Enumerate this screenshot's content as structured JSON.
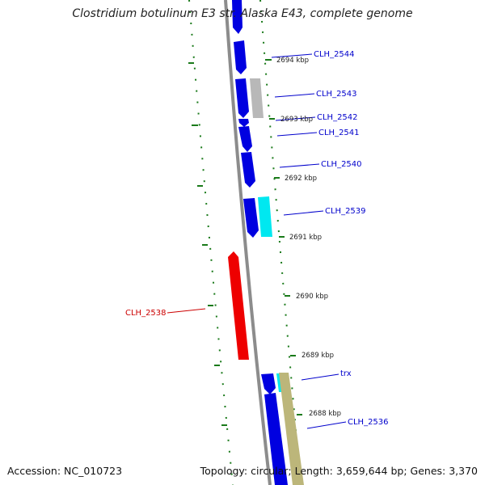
{
  "title": "Clostridium botulinum E3 str. Alaska E43, complete genome",
  "accession": "Accession: NC_010723",
  "summary": "Topology: circular; Length: 3,659,644 bp; Genes: 3,370",
  "colors": {
    "backbone": "#8c8c8c",
    "gc_skew_dots": "#1a7a1a",
    "gene_blue": "#0000e0",
    "gene_red": "#ee0000",
    "gene_gray": "#b8b8b8",
    "gene_cyan": "#00e8f0",
    "gene_khaki": "#bcb67a",
    "label_blue": "#0000cc",
    "label_red": "#cc0000"
  },
  "ticks": [
    "2694 kbp",
    "2693 kbp",
    "2692 kbp",
    "2691 kbp",
    "2690 kbp",
    "2689 kbp",
    "2688 kbp"
  ],
  "genes": [
    {
      "label": "CLH_2544",
      "color": "blue"
    },
    {
      "label": "CLH_2543",
      "color": "blue"
    },
    {
      "label": "CLH_2542",
      "color": "blue"
    },
    {
      "label": "CLH_2541",
      "color": "blue"
    },
    {
      "label": "CLH_2540",
      "color": "blue"
    },
    {
      "label": "CLH_2539",
      "color": "blue"
    },
    {
      "label": "CLH_2538",
      "color": "red"
    },
    {
      "label": "trx",
      "color": "blue"
    },
    {
      "label": "CLH_2536",
      "color": "blue"
    }
  ]
}
